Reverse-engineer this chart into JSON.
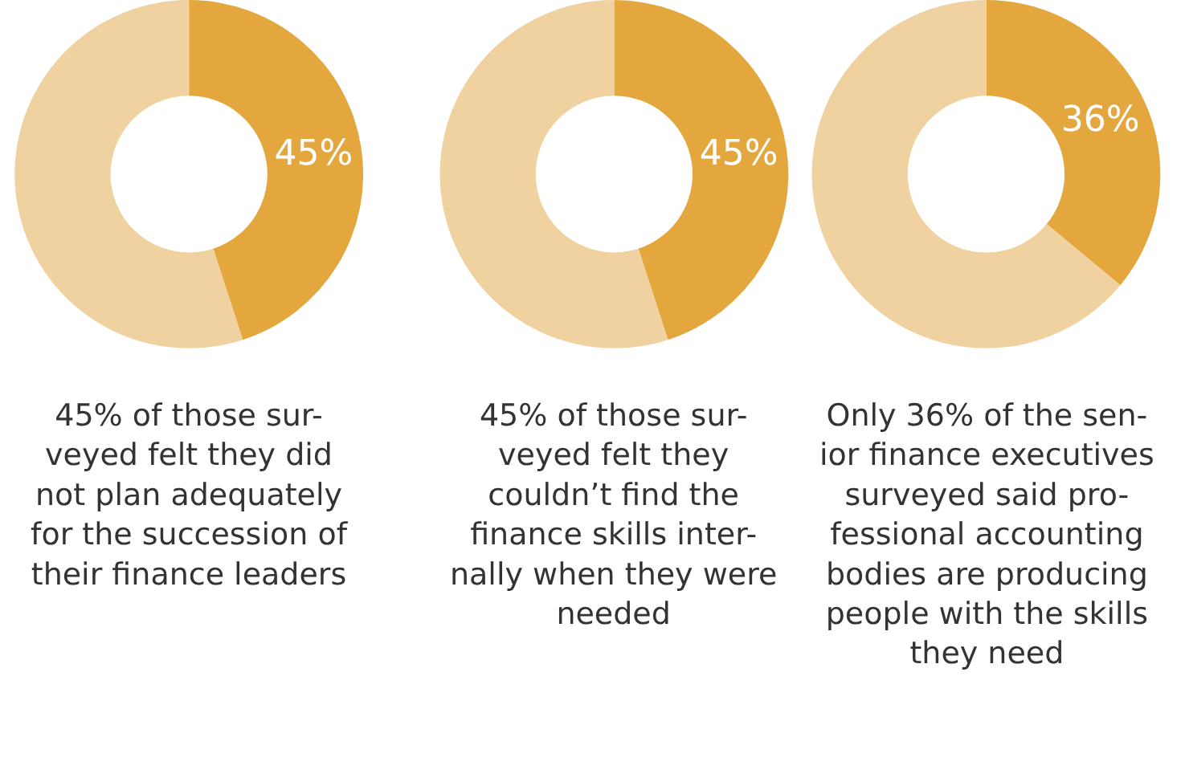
{
  "chart_data": [
    {
      "type": "donut",
      "categories": [
        null,
        null
      ],
      "values": [
        45,
        55
      ],
      "colors": [
        "#e3a73e",
        "#f0d2a0"
      ],
      "value_labels": [
        "45%",
        null
      ],
      "annotations": [
        "45% of those sur-\nveyed felt they did\nnot plan adequately\nfor the succession of\ntheir finance leaders"
      ]
    },
    {
      "type": "donut",
      "categories": [
        null,
        null
      ],
      "values": [
        45,
        55
      ],
      "colors": [
        "#e3a73e",
        "#f0d2a0"
      ],
      "value_labels": [
        "45%",
        null
      ],
      "annotations": [
        "45% of those sur-\nveyed felt they\ncouldn’t find the\nfinance skills inter-\nnally when they were\nneeded"
      ]
    },
    {
      "type": "donut",
      "categories": [
        null,
        null
      ],
      "values": [
        36,
        64
      ],
      "colors": [
        "#e3a73e",
        "#f0d2a0"
      ],
      "value_labels": [
        "36%",
        null
      ],
      "annotations": [
        "Only 36% of the sen-\nior finance executives\nsurveyed said pro-\nfessional accounting\nbodies are producing\npeople with the skills\nthey need"
      ]
    }
  ]
}
